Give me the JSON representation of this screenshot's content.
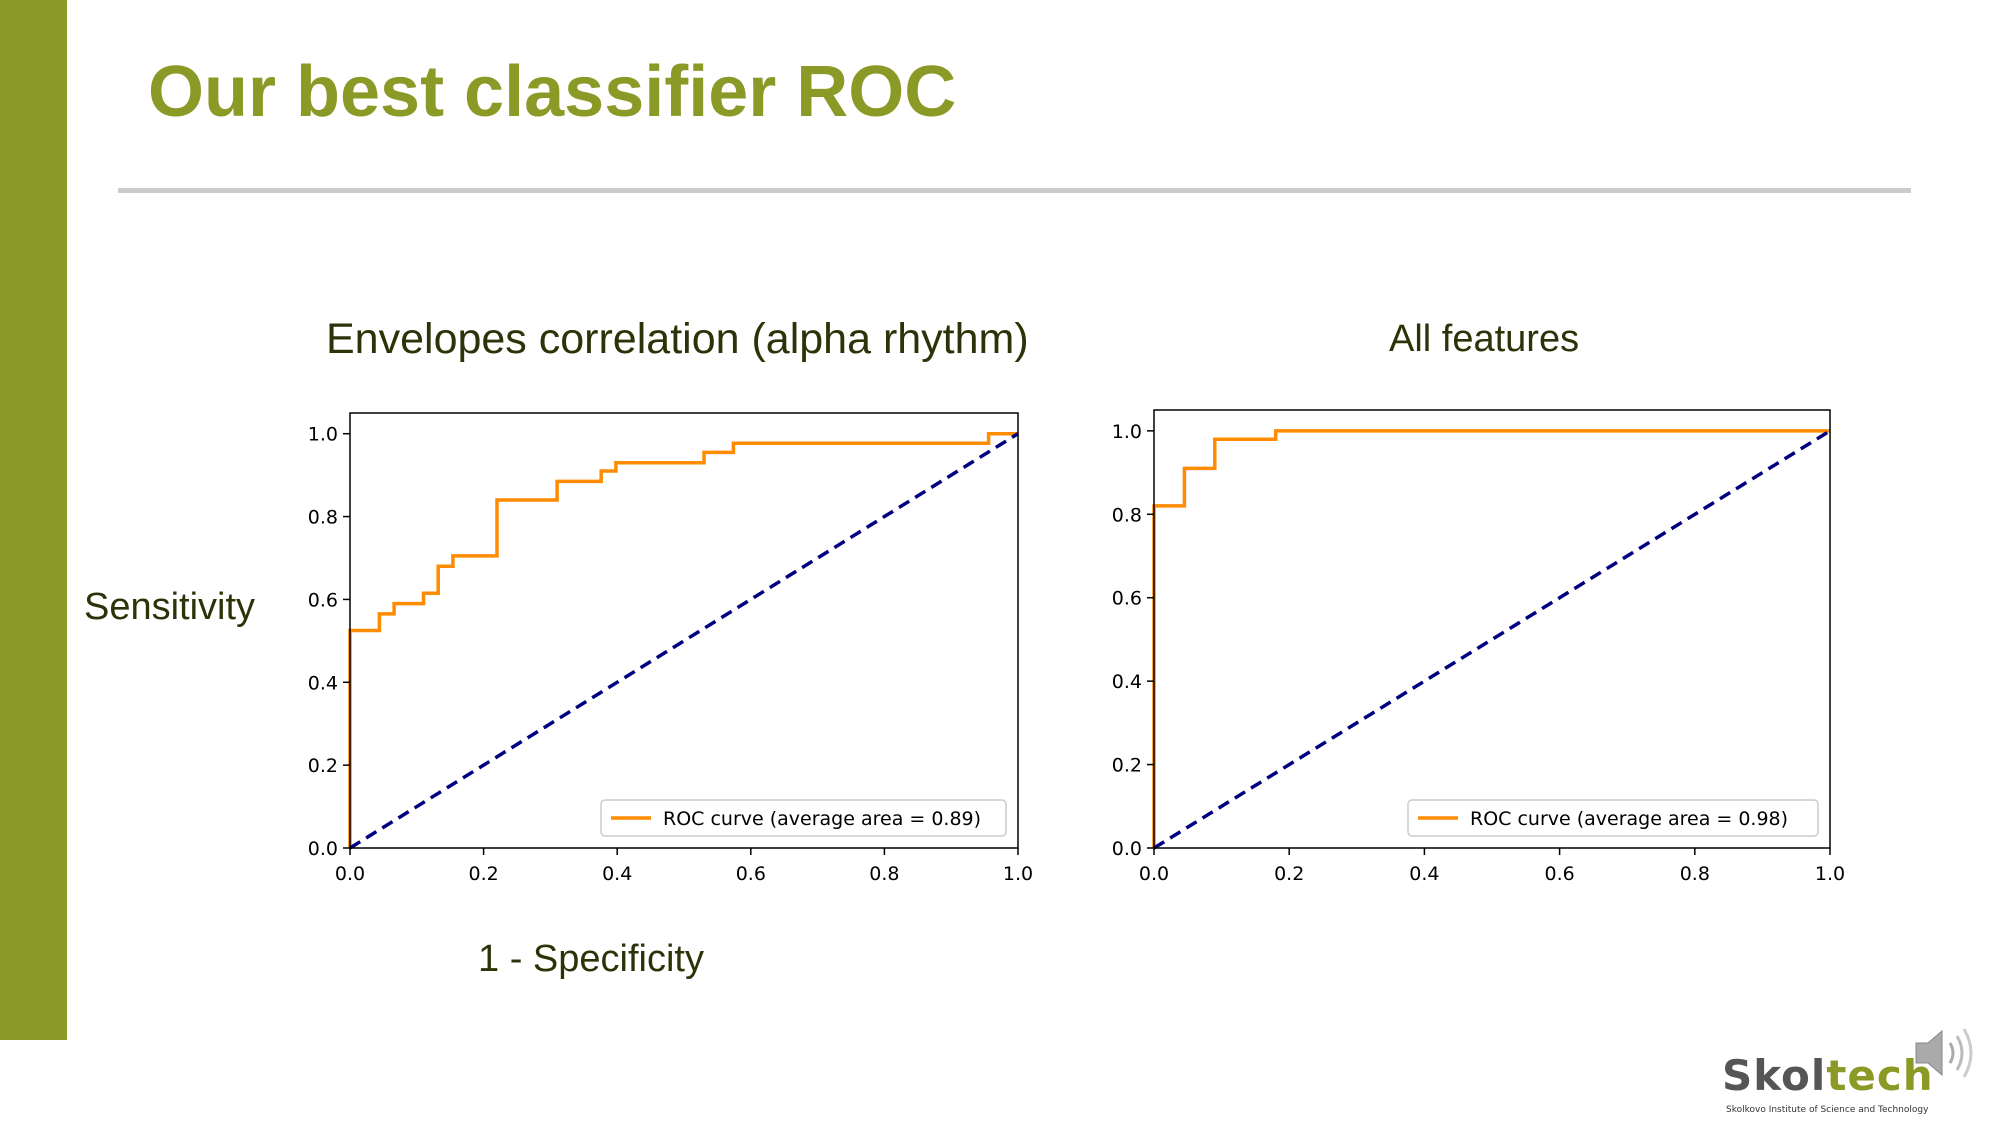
{
  "slide": {
    "title": "Our best classifier ROC",
    "accent_color": "#8b9a26",
    "ylabel": "Sensitivity",
    "xlabel": "1 - Specificity"
  },
  "logo": {
    "word_part1": "Skol",
    "word_part2": "tech",
    "subtitle": "Skolkovo Institute of Science and Technology"
  },
  "icons": {
    "speaker": "speaker-icon"
  },
  "chart_data": [
    {
      "type": "line",
      "title": "Envelopes correlation (alpha rhythm)",
      "xlim": [
        0,
        1
      ],
      "ylim": [
        0,
        1.05
      ],
      "xticks": [
        "0.0",
        "0.2",
        "0.4",
        "0.6",
        "0.8",
        "1.0"
      ],
      "yticks": [
        "0.0",
        "0.2",
        "0.4",
        "0.6",
        "0.8",
        "1.0"
      ],
      "legend_position": "lower-right",
      "series": [
        {
          "name": "ROC curve (average area = 0.89)",
          "color": "#ff8c00",
          "style": "solid",
          "x": [
            0,
            0,
            0.044,
            0.044,
            0.066,
            0.066,
            0.11,
            0.11,
            0.132,
            0.132,
            0.154,
            0.154,
            0.22,
            0.22,
            0.31,
            0.31,
            0.376,
            0.376,
            0.398,
            0.398,
            0.53,
            0.53,
            0.574,
            0.574,
            0.956,
            0.956,
            1.0
          ],
          "y": [
            0,
            0.525,
            0.525,
            0.565,
            0.565,
            0.59,
            0.59,
            0.615,
            0.615,
            0.68,
            0.68,
            0.705,
            0.705,
            0.84,
            0.84,
            0.885,
            0.885,
            0.91,
            0.91,
            0.93,
            0.93,
            0.955,
            0.955,
            0.977,
            0.977,
            1.0,
            1.0
          ]
        },
        {
          "color": "#000080",
          "style": "dashed",
          "x": [
            0,
            1
          ],
          "y": [
            0,
            1
          ]
        }
      ]
    },
    {
      "type": "line",
      "title": "All features",
      "xlim": [
        0,
        1
      ],
      "ylim": [
        0,
        1.05
      ],
      "xticks": [
        "0.0",
        "0.2",
        "0.4",
        "0.6",
        "0.8",
        "1.0"
      ],
      "yticks": [
        "0.0",
        "0.2",
        "0.4",
        "0.6",
        "0.8",
        "1.0"
      ],
      "legend_position": "lower-right",
      "series": [
        {
          "name": "ROC curve (average area = 0.98)",
          "color": "#ff8c00",
          "style": "solid",
          "x": [
            0,
            0,
            0.045,
            0.045,
            0.09,
            0.09,
            0.18,
            0.18,
            1.0
          ],
          "y": [
            0,
            0.82,
            0.82,
            0.91,
            0.91,
            0.98,
            0.98,
            1.0,
            1.0
          ]
        },
        {
          "color": "#000080",
          "style": "dashed",
          "x": [
            0,
            1
          ],
          "y": [
            0,
            1
          ]
        }
      ]
    }
  ]
}
